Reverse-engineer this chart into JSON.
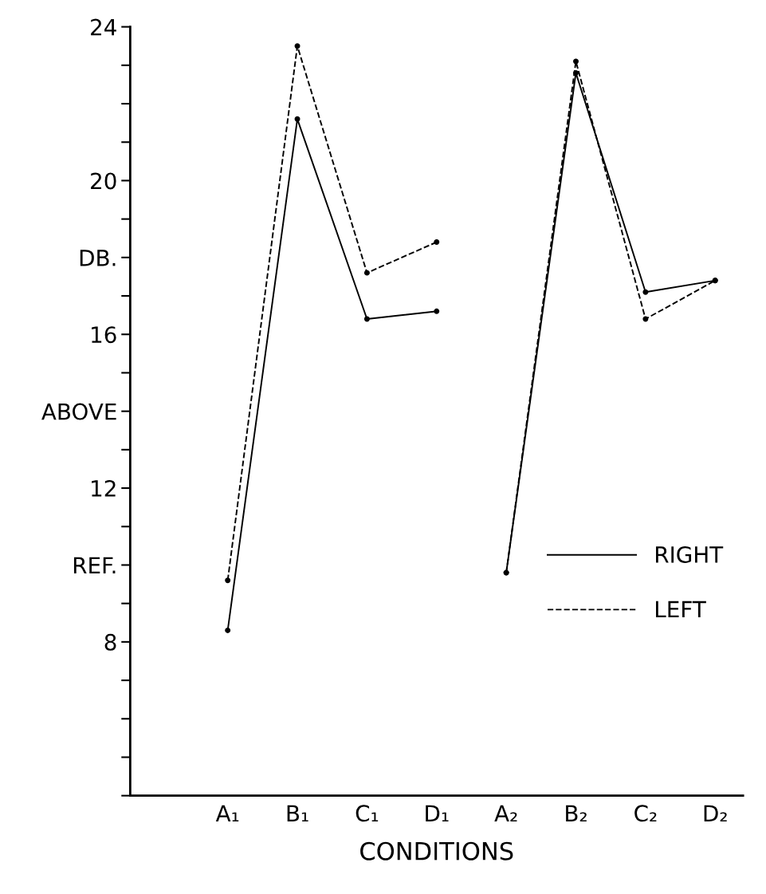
{
  "chart_data": {
    "type": "line",
    "xlabel": "CONDITIONS",
    "categories": [
      "A₁",
      "B₁",
      "C₁",
      "D₁",
      "A₂",
      "B₂",
      "C₂",
      "D₂"
    ],
    "series": [
      {
        "name": "RIGHT",
        "color": "#000000",
        "line_style": "solid",
        "values": [
          8.3,
          21.6,
          16.4,
          16.6,
          null,
          null,
          null,
          null
        ]
      },
      {
        "color": "#000000",
        "line_style": "solid",
        "values": [
          null,
          null,
          null,
          null,
          9.8,
          22.8,
          17.1,
          17.4
        ]
      },
      {
        "name": "LEFT",
        "color": "#000000",
        "line_style": "dashed",
        "values": [
          9.6,
          23.5,
          17.6,
          18.4,
          null,
          null,
          null,
          null
        ]
      },
      {
        "color": "#000000",
        "line_style": "dashed",
        "values": [
          null,
          null,
          null,
          null,
          9.8,
          23.1,
          16.4,
          17.4
        ]
      }
    ],
    "ylim": [
      4,
      24
    ],
    "yticks": [
      8,
      {
        "value": 10,
        "label": "REF."
      },
      12,
      {
        "value": 14,
        "label": "ABOVE"
      },
      16,
      {
        "value": 18,
        "label": "DB."
      },
      20,
      24
    ],
    "marker": "circle",
    "legend": "bottom right",
    "grid": false
  }
}
